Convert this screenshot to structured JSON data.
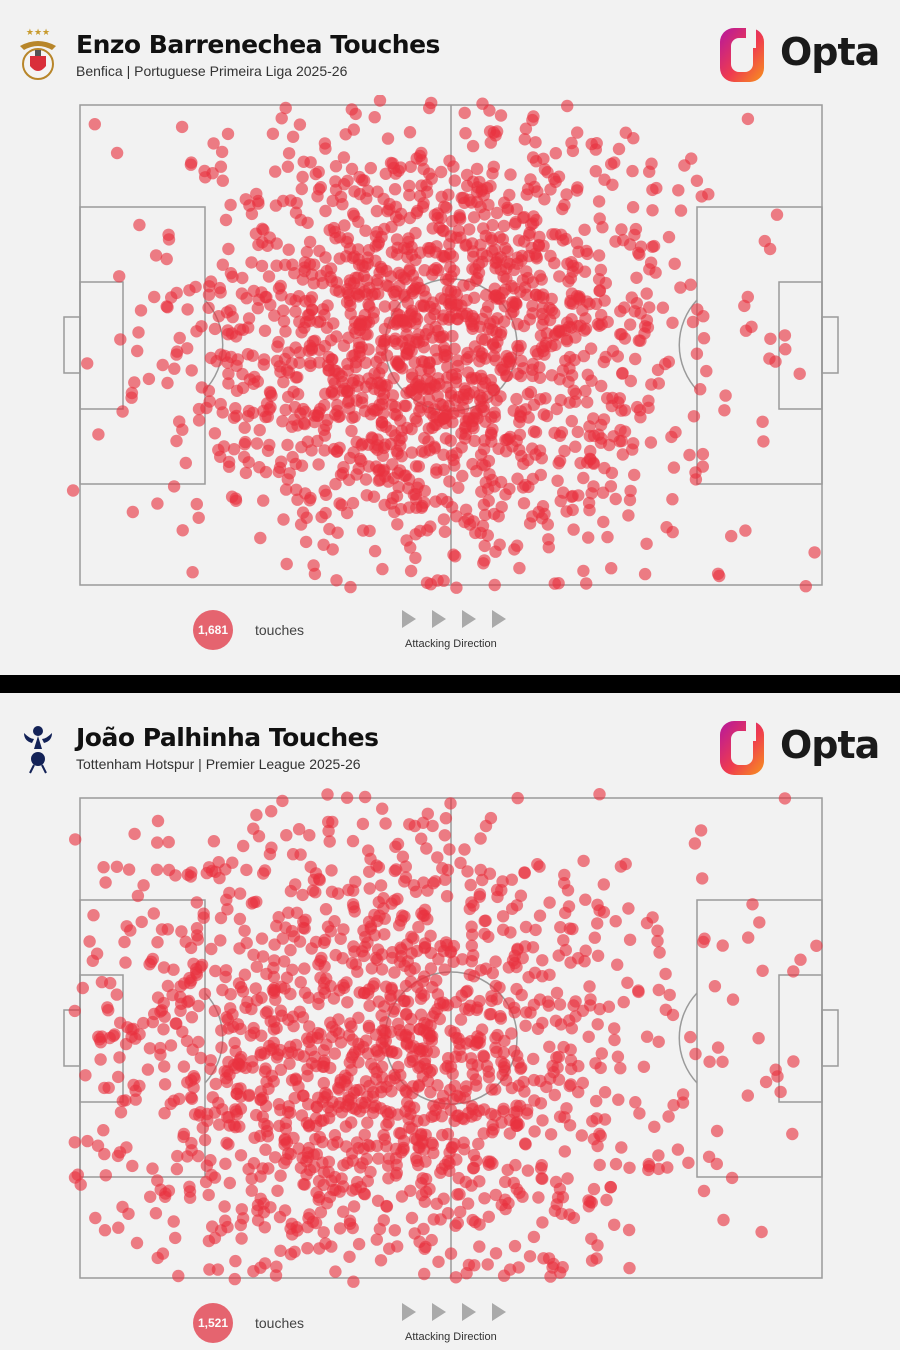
{
  "panels": [
    {
      "title": "Enzo Barrenechea Touches",
      "subtitle": "Benfica | Portuguese Primeira Liga 2025-26",
      "crest": "benfica-crest-icon",
      "touch_count": "1,681",
      "touches_label": "touches",
      "direction_label": "Attacking Direction",
      "brand": "Opta",
      "dot_color": "#e8323f"
    },
    {
      "title": "João Palhinha Touches",
      "subtitle": "Tottenham Hotspur | Premier League 2025-26",
      "crest": "tottenham-crest-icon",
      "touch_count": "1,521",
      "touches_label": "touches",
      "direction_label": "Attacking Direction",
      "brand": "Opta",
      "dot_color": "#e8323f"
    }
  ],
  "chart_data": [
    {
      "type": "scatter",
      "title": "Enzo Barrenechea Touches",
      "subtitle": "Benfica | Portuguese Primeira Liga 2025-26",
      "total_points": 1681,
      "xlim": [
        0,
        100
      ],
      "ylim": [
        0,
        100
      ],
      "legend": "bottom-left",
      "grid": false,
      "series": [
        {
          "x": [
            2,
            5,
            7,
            8,
            10,
            12,
            13,
            13,
            15,
            16,
            18,
            20,
            20,
            21,
            24,
            25,
            25,
            26,
            28,
            30,
            31,
            32,
            33,
            34,
            35,
            36,
            37,
            38,
            39,
            41,
            43,
            44,
            46,
            48,
            50,
            52,
            53,
            55,
            55,
            57,
            59,
            60,
            62,
            63,
            64,
            66,
            68,
            70,
            72,
            73,
            75,
            78,
            81,
            83,
            84,
            90,
            92,
            93,
            95,
            97
          ],
          "y": [
            96,
            90,
            40,
            75,
            60,
            72,
            30,
            48,
            88,
            14,
            92,
            70,
            42,
            18,
            80,
            60,
            35,
            94,
            22,
            85,
            55,
            30,
            92,
            47,
            68,
            15,
            82,
            38,
            58,
            24,
            76,
            48,
            90,
            66,
            40,
            33,
            84,
            58,
            20,
            72,
            44,
            62,
            28,
            86,
            52,
            38,
            74,
            54,
            88,
            30,
            64,
            42,
            78,
            22,
            56,
            60,
            34,
            70,
            52,
            44
          ]
        }
      ]
    },
    {
      "type": "scatter",
      "title": "João Palhinha Touches",
      "subtitle": "Tottenham Hotspur | Premier League 2025-26",
      "total_points": 1521,
      "xlim": [
        0,
        100
      ],
      "ylim": [
        0,
        100
      ],
      "legend": "bottom-left",
      "grid": false,
      "series": [
        {
          "x": [
            4,
            6,
            8,
            10,
            12,
            14,
            15,
            17,
            19,
            20,
            22,
            24,
            26,
            27,
            29,
            30,
            32,
            34,
            35,
            37,
            39,
            40,
            42,
            44,
            46,
            48,
            50,
            52,
            54,
            56,
            58,
            60,
            62,
            64,
            66,
            68,
            70,
            72,
            74,
            76,
            78,
            80,
            82,
            84,
            86,
            88,
            90,
            92,
            94,
            96
          ],
          "y": [
            50,
            70,
            40,
            55,
            85,
            30,
            62,
            20,
            75,
            45,
            90,
            12,
            60,
            35,
            82,
            25,
            50,
            95,
            18,
            68,
            40,
            8,
            78,
            55,
            30,
            62,
            44,
            20,
            85,
            50,
            72,
            28,
            58,
            14,
            40,
            66,
            30,
            52,
            10,
            44,
            60,
            36,
            24,
            70,
            48,
            58,
            38,
            64,
            42,
            30
          ]
        }
      ]
    }
  ]
}
